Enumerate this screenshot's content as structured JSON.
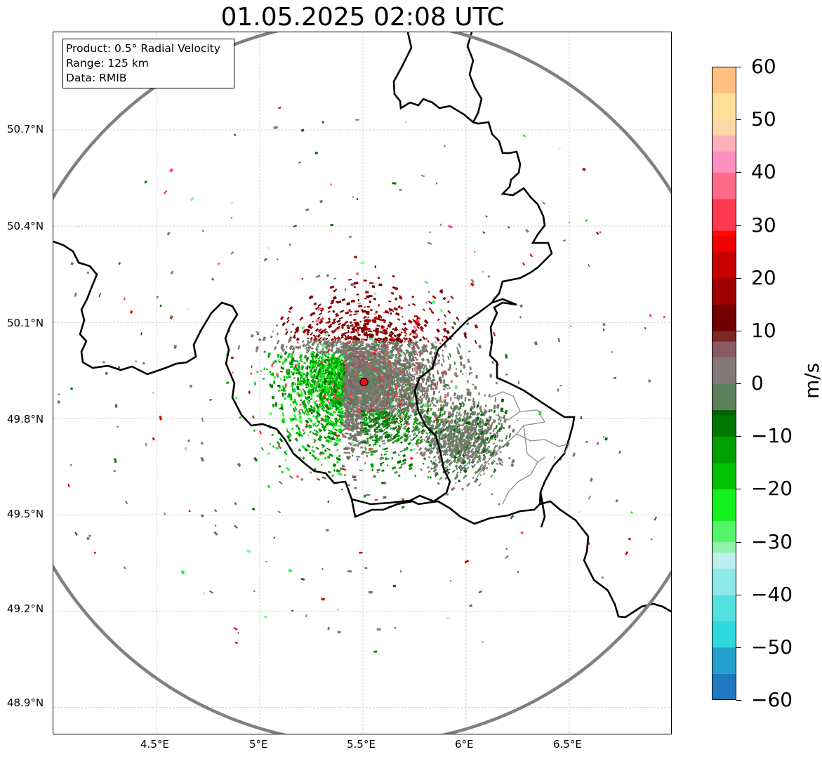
{
  "title": "01.05.2025 02:08 UTC",
  "info": {
    "product": "Product: 0.5° Radial Velocity",
    "range": "Range: 125 km",
    "data": "Data: RMIB"
  },
  "axes": {
    "y_labels": [
      "50.7°N",
      "50.4°N",
      "50.1°N",
      "49.8°N",
      "49.5°N",
      "49.2°N",
      "48.9°N"
    ],
    "y_values": [
      50.7,
      50.4,
      50.1,
      49.8,
      49.5,
      49.2,
      48.9
    ],
    "x_labels": [
      "4.5°E",
      "5°E",
      "5.5°E",
      "6°E",
      "6.5°E"
    ],
    "x_values": [
      4.5,
      5.0,
      5.5,
      6.0,
      6.5
    ],
    "lon_range": [
      4.0,
      7.0
    ],
    "lat_range": [
      48.81,
      51.0
    ]
  },
  "radar": {
    "lon": 5.505,
    "lat": 49.914,
    "range_ring_color": "#808080",
    "marker_color": "#ee1111"
  },
  "colorbar": {
    "label": "m/s",
    "min": -60,
    "max": 60,
    "tick_labels": [
      "60",
      "50",
      "40",
      "30",
      "20",
      "10",
      "0",
      "−10",
      "−20",
      "−30",
      "−40",
      "−50",
      "−60"
    ],
    "tick_values": [
      60,
      50,
      40,
      30,
      20,
      10,
      0,
      -10,
      -20,
      -30,
      -40,
      -50,
      -60
    ],
    "stops": [
      {
        "v": -60,
        "c": "#1f78c0"
      },
      {
        "v": -55,
        "c": "#24a0cc"
      },
      {
        "v": -50,
        "c": "#2fd8dc"
      },
      {
        "v": -45,
        "c": "#55e0e0"
      },
      {
        "v": -40,
        "c": "#8ee8e8"
      },
      {
        "v": -35,
        "c": "#bdeeee"
      },
      {
        "v": -32,
        "c": "#8ff2a8"
      },
      {
        "v": -30,
        "c": "#55f56a"
      },
      {
        "v": -26,
        "c": "#14f020"
      },
      {
        "v": -20,
        "c": "#00c200"
      },
      {
        "v": -15,
        "c": "#00a000"
      },
      {
        "v": -10,
        "c": "#007800"
      },
      {
        "v": -6,
        "c": "#006300"
      },
      {
        "v": -5,
        "c": "#5c805c"
      },
      {
        "v": 0,
        "c": "#857878"
      },
      {
        "v": 5,
        "c": "#8a5a62"
      },
      {
        "v": 8,
        "c": "#7a2828"
      },
      {
        "v": 10,
        "c": "#730000"
      },
      {
        "v": 15,
        "c": "#a00000"
      },
      {
        "v": 20,
        "c": "#c80000"
      },
      {
        "v": 25,
        "c": "#ee0000"
      },
      {
        "v": 28,
        "c": "#ff0808"
      },
      {
        "v": 29,
        "c": "#ff3a50"
      },
      {
        "v": 35,
        "c": "#ff6a88"
      },
      {
        "v": 40,
        "c": "#ff90c0"
      },
      {
        "v": 44,
        "c": "#ffb0b8"
      },
      {
        "v": 47,
        "c": "#ffd8a8"
      },
      {
        "v": 50,
        "c": "#ffe098"
      },
      {
        "v": 55,
        "c": "#ffc080"
      },
      {
        "v": 60,
        "c": "#ff9a50"
      }
    ]
  }
}
